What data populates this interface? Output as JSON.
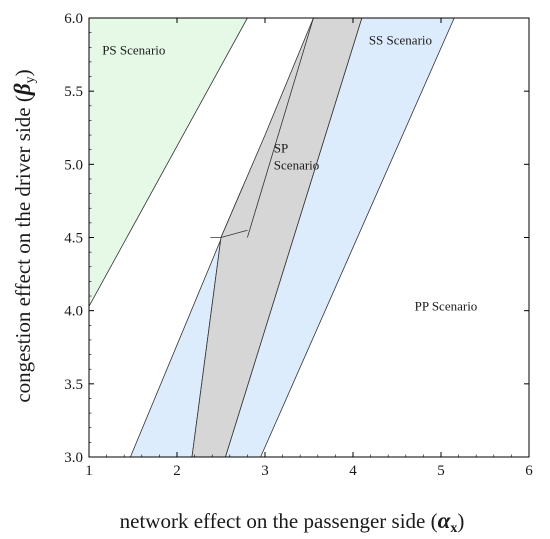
{
  "chart_data": {
    "type": "area",
    "title": "",
    "xlabel": "network effect on the passenger side (",
    "xlabel_symbol": "α",
    "xlabel_subscript": "x",
    "xlabel_close": ")",
    "ylabel": "congestion effect on the driver side (",
    "ylabel_symbol": "β",
    "ylabel_subscript": "y",
    "ylabel_close": ")",
    "xlim": [
      1,
      6
    ],
    "ylim": [
      3,
      6
    ],
    "x_ticks": [
      1,
      2,
      3,
      4,
      5,
      6
    ],
    "x_tick_labels": [
      "1",
      "2",
      "3",
      "4",
      "5",
      "6"
    ],
    "y_ticks": [
      3.0,
      3.5,
      4.0,
      4.5,
      5.0,
      5.5,
      6.0
    ],
    "y_tick_labels": [
      "3.0",
      "3.5",
      "4.0",
      "4.5",
      "5.0",
      "5.5",
      "6.0"
    ],
    "grid": false,
    "regions": [
      {
        "label": "PS Scenario",
        "color": "#e6f8e6",
        "label_at": [
          1.15,
          5.75
        ],
        "polygon": [
          [
            1.0,
            6.0
          ],
          [
            2.8,
            6.0
          ],
          [
            1.0,
            4.03
          ]
        ]
      },
      {
        "label": "SS Scenario",
        "color": "#ddecfc",
        "label_at": [
          4.18,
          5.82
        ],
        "polygon": [
          [
            4.1,
            6.0
          ],
          [
            5.15,
            6.0
          ],
          [
            2.95,
            3.0
          ],
          [
            2.55,
            3.0
          ]
        ]
      },
      {
        "label": "",
        "color": "#ddecfc",
        "polygon": [
          [
            1.47,
            3.0
          ],
          [
            2.17,
            3.0
          ],
          [
            2.5,
            4.5
          ],
          [
            2.75,
            4.85
          ]
        ]
      },
      {
        "label": "SP Scenario",
        "label_lines": [
          "SP",
          "Scenario"
        ],
        "color": "#d6d6d6",
        "label_at": [
          3.1,
          5.08
        ],
        "polygon": [
          [
            3.55,
            6.0
          ],
          [
            4.1,
            6.0
          ],
          [
            2.55,
            3.0
          ],
          [
            2.17,
            3.0
          ],
          [
            2.5,
            4.5
          ],
          [
            2.75,
            4.85
          ],
          [
            3.0,
            5.2
          ]
        ]
      },
      {
        "label": "PP Scenario",
        "color": "#ffffff",
        "label_at": [
          4.7,
          4.0
        ],
        "polygon": []
      }
    ],
    "lines": [
      [
        [
          1.0,
          3.0
        ],
        [
          1.47,
          3.0
        ]
      ],
      [
        [
          2.8,
          4.55
        ],
        [
          2.5,
          4.5
        ],
        [
          2.38,
          4.5
        ]
      ],
      [
        [
          2.8,
          4.5
        ],
        [
          3.55,
          6.0
        ]
      ]
    ]
  }
}
